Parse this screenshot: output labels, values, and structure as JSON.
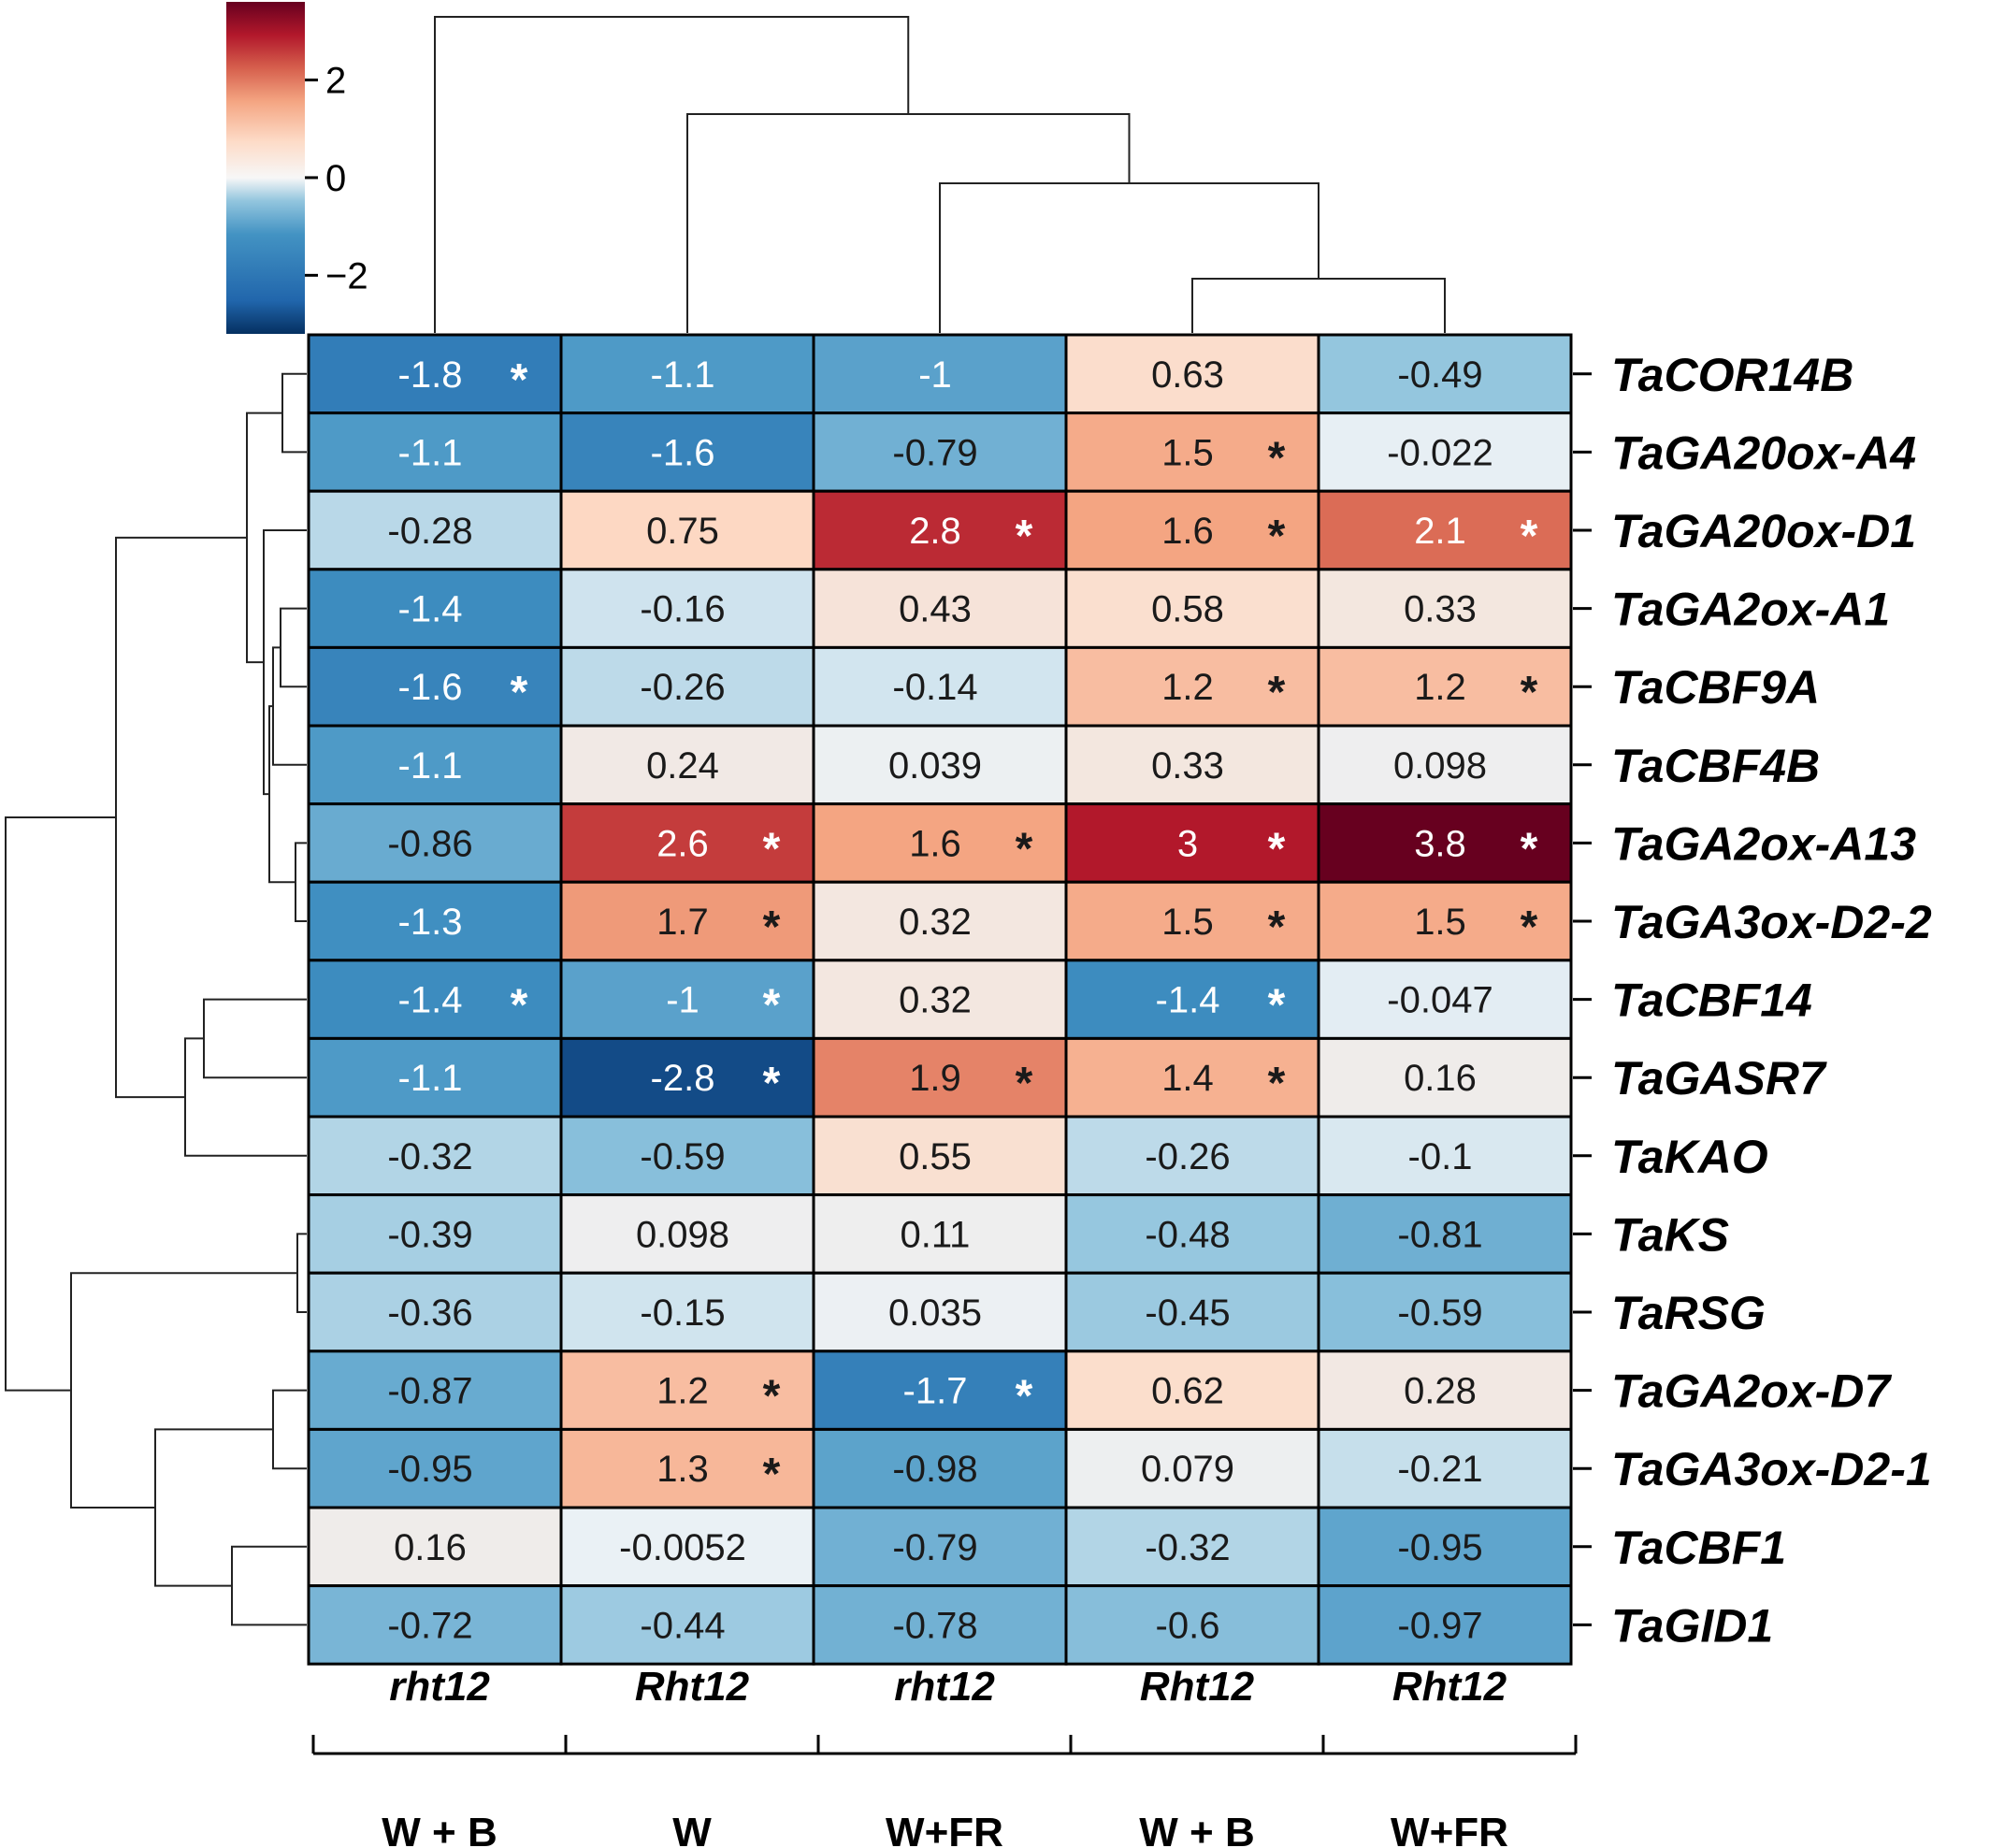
{
  "chart_data": {
    "type": "heatmap",
    "title": "",
    "rows": [
      "TaCOR14B",
      "TaGA20ox-A4",
      "TaGA20ox-D1",
      "TaGA2ox-A1",
      "TaCBF9A",
      "TaCBF4B",
      "TaGA2ox-A13",
      "TaGA3ox-D2-2",
      "TaCBF14",
      "TaGASR7",
      "TaKAO",
      "TaKS",
      "TaRSG",
      "TaGA2ox-D7",
      "TaGA3ox-D2-1",
      "TaCBF1",
      "TaGID1"
    ],
    "columns": [
      {
        "genotype": "rht12",
        "condition": "W + B"
      },
      {
        "genotype": "Rht12",
        "condition": "W"
      },
      {
        "genotype": "rht12",
        "condition": "W+FR"
      },
      {
        "genotype": "Rht12",
        "condition": "W + B"
      },
      {
        "genotype": "Rht12",
        "condition": "W+FR"
      }
    ],
    "values": [
      [
        "-1.8",
        "-1.1",
        "-1",
        "0.63",
        "-0.49"
      ],
      [
        "-1.1",
        "-1.6",
        "-0.79",
        "1.5",
        "-0.022"
      ],
      [
        "-0.28",
        "0.75",
        "2.8",
        "1.6",
        "2.1"
      ],
      [
        "-1.4",
        "-0.16",
        "0.43",
        "0.58",
        "0.33"
      ],
      [
        "-1.6",
        "-0.26",
        "-0.14",
        "1.2",
        "1.2"
      ],
      [
        "-1.1",
        "0.24",
        "0.039",
        "0.33",
        "0.098"
      ],
      [
        "-0.86",
        "2.6",
        "1.6",
        "3",
        "3.8"
      ],
      [
        "-1.3",
        "1.7",
        "0.32",
        "1.5",
        "1.5"
      ],
      [
        "-1.4",
        "-1",
        "0.32",
        "-1.4",
        "-0.047"
      ],
      [
        "-1.1",
        "-2.8",
        "1.9",
        "1.4",
        "0.16"
      ],
      [
        "-0.32",
        "-0.59",
        "0.55",
        "-0.26",
        "-0.1"
      ],
      [
        "-0.39",
        "0.098",
        "0.11",
        "-0.48",
        "-0.81"
      ],
      [
        "-0.36",
        "-0.15",
        "0.035",
        "-0.45",
        "-0.59"
      ],
      [
        "-0.87",
        "1.2",
        "-1.7",
        "0.62",
        "0.28"
      ],
      [
        "-0.95",
        "1.3",
        "-0.98",
        "0.079",
        "-0.21"
      ],
      [
        "0.16",
        "-0.0052",
        "-0.79",
        "-0.32",
        "-0.95"
      ],
      [
        "-0.72",
        "-0.44",
        "-0.78",
        "-0.6",
        "-0.97"
      ]
    ],
    "significant": [
      [
        true,
        false,
        false,
        false,
        false
      ],
      [
        false,
        false,
        false,
        true,
        false
      ],
      [
        false,
        false,
        true,
        true,
        true
      ],
      [
        false,
        false,
        false,
        false,
        false
      ],
      [
        true,
        false,
        false,
        true,
        true
      ],
      [
        false,
        false,
        false,
        false,
        false
      ],
      [
        false,
        true,
        true,
        true,
        true
      ],
      [
        false,
        true,
        false,
        true,
        true
      ],
      [
        true,
        true,
        false,
        true,
        false
      ],
      [
        false,
        true,
        true,
        true,
        false
      ],
      [
        false,
        false,
        false,
        false,
        false
      ],
      [
        false,
        false,
        false,
        false,
        false
      ],
      [
        false,
        false,
        false,
        false,
        false
      ],
      [
        false,
        true,
        true,
        false,
        false
      ],
      [
        false,
        true,
        false,
        false,
        false
      ],
      [
        false,
        false,
        false,
        false,
        false
      ],
      [
        false,
        false,
        false,
        false,
        false
      ]
    ],
    "significance_marker": "*",
    "colorbar": {
      "ticks": [
        "2",
        "0",
        "−2"
      ],
      "range": [
        -3.2,
        3.6
      ],
      "colormap": "RdBu_r"
    },
    "colors": {
      "low": "#0a3064",
      "mid": "#f7f7f7",
      "high": "#67000d"
    }
  }
}
